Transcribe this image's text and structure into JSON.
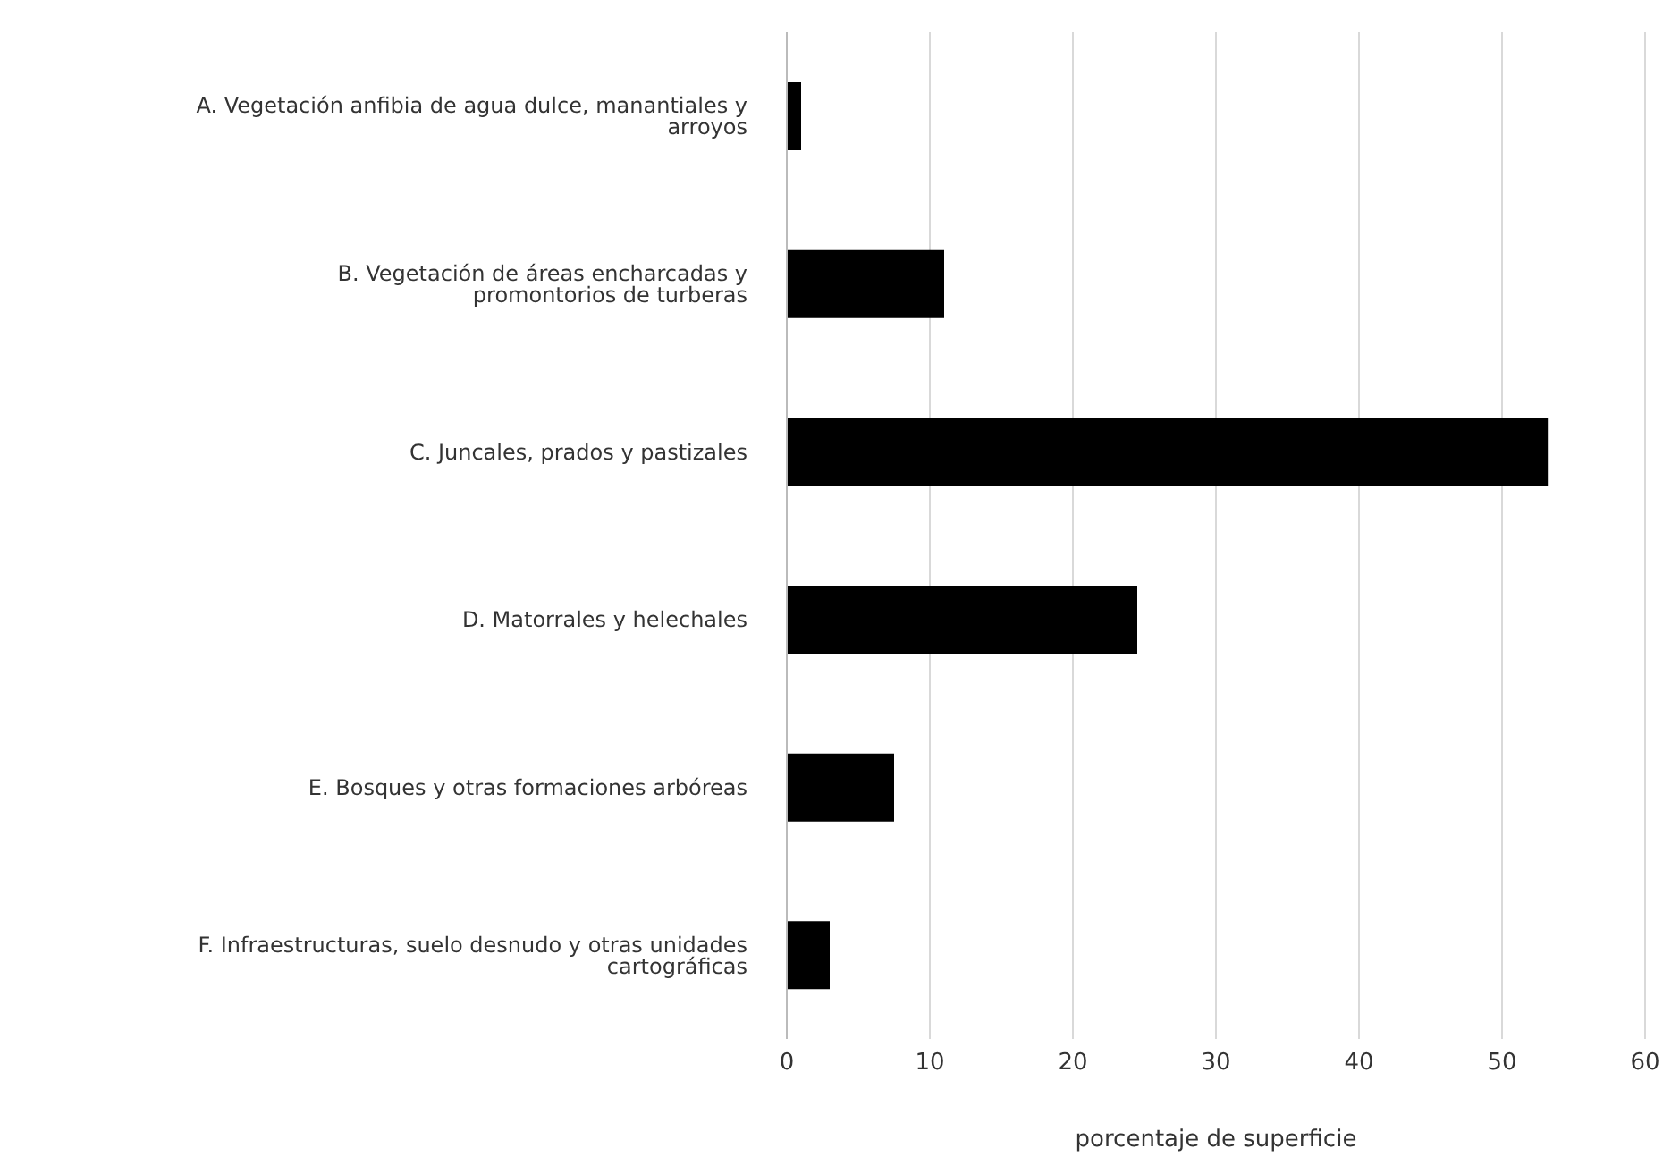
{
  "chart_data": {
    "type": "bar",
    "orientation": "horizontal",
    "xlabel": "porcentaje de superficie",
    "categories": [
      "A. Vegetación anfibia de agua dulce, manantiales y arroyos",
      "B. Vegetación de áreas encharcadas y promontorios de turberas",
      "C. Juncales, prados y pastizales",
      "D. Matorrales y helechales",
      "E. Bosques y otras formaciones arbóreas",
      "F. Infraestructuras, suelo desnudo y otras unidades cartográficas"
    ],
    "values": [
      1,
      11,
      53.2,
      24.5,
      7.5,
      3
    ],
    "color": "#000000",
    "xlim": [
      0,
      60
    ],
    "xticks": [
      0,
      10,
      20,
      30,
      40,
      50,
      60
    ],
    "grid": "x"
  }
}
